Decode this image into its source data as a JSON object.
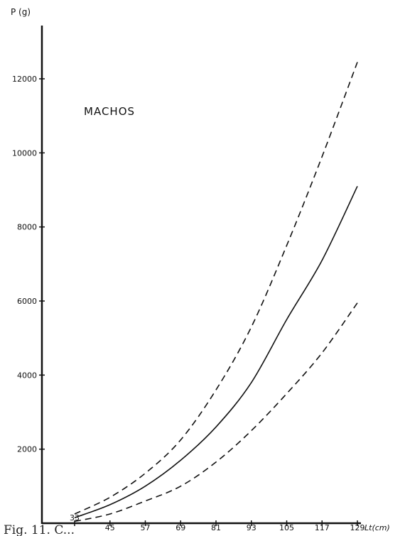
{
  "chart_data": {
    "type": "line",
    "title": "",
    "ylabel": "P (g)",
    "xlabel": "",
    "annotation": "MACHOS",
    "caption": "Fig. 11. C...",
    "xlim": [
      33,
      129
    ],
    "ylim": [
      0,
      13000
    ],
    "x_ticks": [
      33,
      45,
      57,
      69,
      81,
      93,
      105,
      117,
      129
    ],
    "x_last_tick_suffix": "Lt(cm)",
    "y_ticks": [
      2000,
      4000,
      6000,
      8000,
      10000,
      12000
    ],
    "series": [
      {
        "style": "dashed",
        "x": [
          33,
          45,
          57,
          69,
          81,
          93,
          105,
          117,
          129
        ],
        "y": [
          250,
          700,
          1350,
          2250,
          3600,
          5300,
          7500,
          9900,
          12450
        ]
      },
      {
        "style": "solid",
        "x": [
          33,
          45,
          57,
          69,
          81,
          93,
          105,
          117,
          129
        ],
        "y": [
          150,
          500,
          1000,
          1700,
          2600,
          3800,
          5500,
          7100,
          9100
        ]
      },
      {
        "style": "dashed",
        "x": [
          33,
          45,
          57,
          69,
          81,
          93,
          105,
          117,
          129
        ],
        "y": [
          50,
          250,
          600,
          1000,
          1650,
          2500,
          3500,
          4600,
          5950
        ]
      }
    ],
    "colors": {
      "line": "#111111",
      "axis": "#111111",
      "background": "#ffffff"
    }
  }
}
